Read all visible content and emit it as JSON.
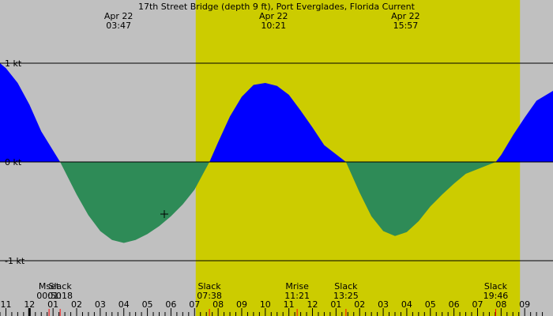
{
  "chart_data": {
    "type": "area",
    "title": "17th Street Bridge (depth 9 ft), Port Everglades, Florida Current",
    "y_unit": "kt",
    "y_ticks": [
      {
        "value": 1,
        "label": "1 kt"
      },
      {
        "value": 0,
        "label": "0 kt"
      },
      {
        "value": -1,
        "label": "-1 kt"
      }
    ],
    "ylim": [
      -1.0,
      1.0
    ],
    "x_range_hours": [
      22.75,
      46.2
    ],
    "daylight_hours": [
      31.05,
      44.8
    ],
    "x_tick_labels": [
      "11",
      "12",
      "01",
      "02",
      "03",
      "04",
      "05",
      "06",
      "07",
      "08",
      "09",
      "10",
      "11",
      "12",
      "01",
      "02",
      "03",
      "04",
      "05",
      "06",
      "07",
      "08",
      "09"
    ],
    "x_tick_hours": [
      23,
      24,
      25,
      26,
      27,
      28,
      29,
      30,
      31,
      32,
      33,
      34,
      35,
      36,
      37,
      38,
      39,
      40,
      41,
      42,
      43,
      44,
      45
    ],
    "top_events": [
      {
        "date": "Apr 22",
        "time": "03:47",
        "hour": 27.78
      },
      {
        "date": "Apr 22",
        "time": "10:21",
        "hour": 34.35
      },
      {
        "date": "Apr 22",
        "time": "15:57",
        "hour": 39.95
      }
    ],
    "bottom_events": [
      {
        "label": "Mset",
        "time": "00:50",
        "hour": 24.83
      },
      {
        "label": "Slack",
        "time": "01:18",
        "hour": 25.3
      },
      {
        "label": "Slack",
        "time": "07:38",
        "hour": 31.63
      },
      {
        "label": "Mrise",
        "time": "11:21",
        "hour": 35.35
      },
      {
        "label": "Slack",
        "time": "13:25",
        "hour": 37.42
      },
      {
        "label": "Slack",
        "time": "19:46",
        "hour": 43.77
      }
    ],
    "series": [
      {
        "points": [
          [
            22.75,
            1.0
          ],
          [
            23.0,
            0.95
          ],
          [
            23.5,
            0.8
          ],
          [
            24.0,
            0.58
          ],
          [
            24.5,
            0.31
          ],
          [
            25.3,
            0.0
          ],
          [
            26.0,
            -0.33
          ],
          [
            26.5,
            -0.54
          ],
          [
            27.0,
            -0.7
          ],
          [
            27.5,
            -0.79
          ],
          [
            28.0,
            -0.82
          ],
          [
            28.5,
            -0.79
          ],
          [
            29.0,
            -0.73
          ],
          [
            29.5,
            -0.65
          ],
          [
            30.0,
            -0.55
          ],
          [
            30.5,
            -0.43
          ],
          [
            31.0,
            -0.28
          ],
          [
            31.63,
            0.0
          ],
          [
            32.0,
            0.2
          ],
          [
            32.5,
            0.46
          ],
          [
            33.0,
            0.66
          ],
          [
            33.5,
            0.78
          ],
          [
            34.0,
            0.8
          ],
          [
            34.5,
            0.77
          ],
          [
            35.0,
            0.68
          ],
          [
            35.5,
            0.52
          ],
          [
            36.0,
            0.35
          ],
          [
            36.5,
            0.17
          ],
          [
            37.42,
            0.0
          ],
          [
            38.0,
            -0.31
          ],
          [
            38.5,
            -0.55
          ],
          [
            39.0,
            -0.7
          ],
          [
            39.5,
            -0.75
          ],
          [
            40.0,
            -0.71
          ],
          [
            40.5,
            -0.6
          ],
          [
            41.0,
            -0.45
          ],
          [
            41.5,
            -0.33
          ],
          [
            42.0,
            -0.22
          ],
          [
            42.5,
            -0.12
          ],
          [
            43.77,
            0.0
          ],
          [
            44.0,
            0.07
          ],
          [
            44.5,
            0.27
          ],
          [
            45.0,
            0.45
          ],
          [
            45.5,
            0.62
          ],
          [
            46.2,
            0.72
          ]
        ]
      }
    ],
    "colors": {
      "background": "#c0c0c0",
      "daylight": "#cccc00",
      "flood": "#0000ff",
      "ebb": "#2e8b57"
    }
  }
}
